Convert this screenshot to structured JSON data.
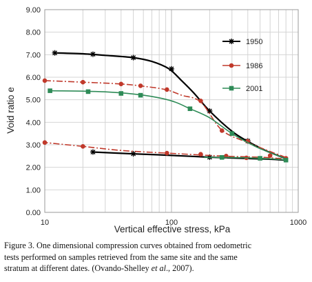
{
  "chart_data": {
    "type": "line",
    "xlabel": "Vertical effective stress, kPa",
    "ylabel": "Void ratio e",
    "xscale": "log",
    "xlim": [
      10,
      1000
    ],
    "ylim": [
      0,
      9
    ],
    "x_ticks": [
      "10",
      "100",
      "1000"
    ],
    "y_ticks": [
      "0.00",
      "1.00",
      "2.00",
      "3.00",
      "4.00",
      "5.00",
      "6.00",
      "7.00",
      "8.00",
      "9.00"
    ],
    "grid": true,
    "legend_position": "right",
    "series": [
      {
        "name": "1950",
        "color": "#000000",
        "marker": "star",
        "dash": "solid",
        "curve": [
          [
            12,
            7.08
          ],
          [
            20,
            7.04
          ],
          [
            30,
            6.97
          ],
          [
            50,
            6.87
          ],
          [
            70,
            6.7
          ],
          [
            95,
            6.38
          ],
          [
            120,
            5.85
          ],
          [
            150,
            5.3
          ],
          [
            200,
            4.5
          ],
          [
            300,
            3.6
          ],
          [
            400,
            3.15
          ],
          [
            550,
            2.75
          ],
          [
            800,
            2.35
          ],
          [
            600,
            2.36
          ],
          [
            400,
            2.39
          ],
          [
            200,
            2.45
          ],
          [
            100,
            2.53
          ],
          [
            50,
            2.6
          ],
          [
            24,
            2.68
          ]
        ],
        "markers": [
          [
            12,
            7.08
          ],
          [
            24,
            7.02
          ],
          [
            50,
            6.87
          ],
          [
            100,
            6.37
          ],
          [
            200,
            4.5
          ],
          [
            400,
            3.17
          ],
          [
            200,
            2.45
          ],
          [
            50,
            2.6
          ],
          [
            24,
            2.68
          ]
        ]
      },
      {
        "name": "1986",
        "color": "#c0392b",
        "marker": "circle",
        "dash": "dashdot",
        "curve": [
          [
            10,
            5.85
          ],
          [
            20,
            5.78
          ],
          [
            40,
            5.7
          ],
          [
            60,
            5.6
          ],
          [
            90,
            5.45
          ],
          [
            120,
            5.2
          ],
          [
            170,
            4.9
          ],
          [
            250,
            3.65
          ],
          [
            400,
            3.1
          ],
          [
            600,
            2.7
          ],
          [
            800,
            2.4
          ],
          [
            500,
            2.45
          ],
          [
            250,
            2.5
          ],
          [
            100,
            2.62
          ],
          [
            40,
            2.75
          ],
          [
            20,
            2.93
          ],
          [
            10,
            3.1
          ]
        ],
        "markers": [
          [
            10,
            5.85
          ],
          [
            20,
            5.78
          ],
          [
            40,
            5.7
          ],
          [
            57,
            5.62
          ],
          [
            92,
            5.45
          ],
          [
            170,
            4.95
          ],
          [
            250,
            3.63
          ],
          [
            400,
            3.16
          ],
          [
            10,
            3.1
          ],
          [
            20,
            2.93
          ],
          [
            92,
            2.63
          ],
          [
            170,
            2.58
          ],
          [
            270,
            2.5
          ],
          [
            390,
            2.42
          ],
          [
            600,
            2.52
          ],
          [
            800,
            2.4
          ]
        ]
      },
      {
        "name": "2001",
        "color": "#2e8b57",
        "marker": "square",
        "dash": "solid",
        "curve": [
          [
            11,
            5.4
          ],
          [
            30,
            5.35
          ],
          [
            60,
            5.2
          ],
          [
            100,
            4.95
          ],
          [
            140,
            4.6
          ],
          [
            200,
            4.2
          ],
          [
            300,
            3.5
          ],
          [
            450,
            2.95
          ],
          [
            600,
            2.65
          ],
          [
            800,
            2.35
          ],
          [
            600,
            2.38
          ],
          [
            400,
            2.42
          ],
          [
            250,
            2.44
          ],
          [
            180,
            2.44
          ]
        ],
        "markers": [
          [
            11,
            5.4
          ],
          [
            22,
            5.36
          ],
          [
            40,
            5.28
          ],
          [
            57,
            5.2
          ],
          [
            140,
            4.6
          ],
          [
            300,
            3.5
          ],
          [
            800,
            2.32
          ],
          [
            500,
            2.4
          ],
          [
            250,
            2.44
          ]
        ]
      }
    ]
  },
  "caption": {
    "line1": "Figure 3. One dimensional compression curves obtained from oedometric",
    "line2": "tests performed on samples retrieved from the same site and the same",
    "line3_prefix": "stratum at different dates. (Ovando-Shelley ",
    "line3_italic": "et al",
    "line3_suffix": "., 2007)."
  }
}
